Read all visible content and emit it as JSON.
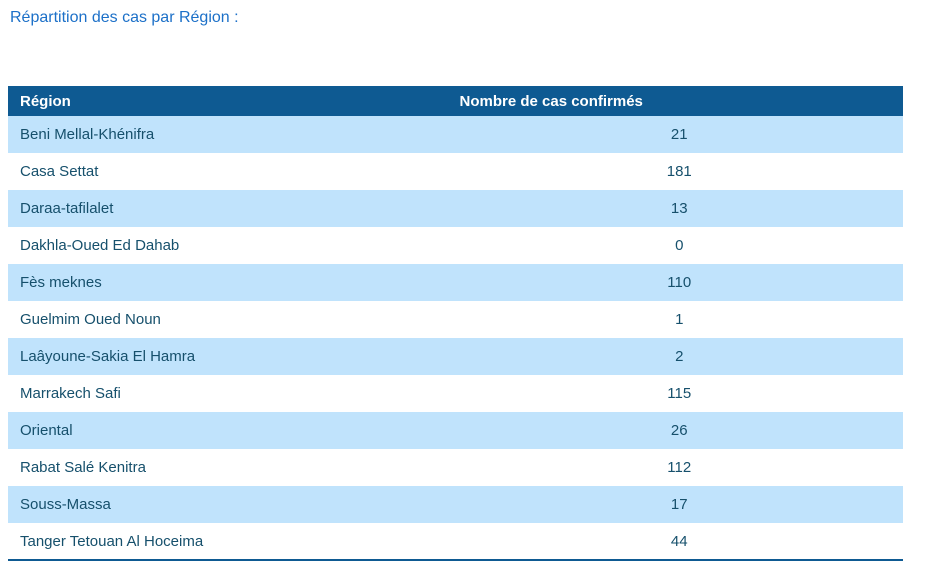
{
  "title": "Répartition des cas par Région :",
  "colors": {
    "header-bg": "#0e5a92",
    "header-text": "#ffffff",
    "stripe-bg": "#c0e3fc",
    "row-bg": "#ffffff",
    "cell-text": "#16506c",
    "title-text": "#1c70c8",
    "table-bottom-border": "#0e5a92"
  },
  "table": {
    "headers": {
      "region": "Région",
      "cases": "Nombre de cas confirmés"
    },
    "rows": [
      {
        "region": "Beni Mellal-Khénifra",
        "cases": "21"
      },
      {
        "region": "Casa Settat",
        "cases": "181"
      },
      {
        "region": "Daraa-tafilalet",
        "cases": "13"
      },
      {
        "region": "Dakhla-Oued Ed Dahab",
        "cases": "0"
      },
      {
        "region": "Fès meknes",
        "cases": "110"
      },
      {
        "region": "Guelmim Oued Noun",
        "cases": "1"
      },
      {
        "region": "Laâyoune-Sakia El Hamra",
        "cases": "2"
      },
      {
        "region": "Marrakech Safi",
        "cases": "115"
      },
      {
        "region": "Oriental",
        "cases": "26"
      },
      {
        "region": "Rabat Salé Kenitra",
        "cases": "112"
      },
      {
        "region": "Souss-Massa",
        "cases": "17"
      },
      {
        "region": "Tanger Tetouan Al Hoceima",
        "cases": "44"
      }
    ]
  }
}
